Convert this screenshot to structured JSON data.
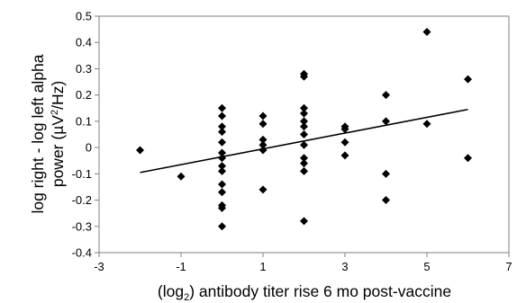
{
  "chart_data": {
    "type": "scatter",
    "title": "",
    "xlabel": "(log2) antibody titer rise 6 mo post-vaccine",
    "xlabel_parts": {
      "pre": "(log",
      "sub": "2",
      "post": ") antibody titer rise 6 mo post-vaccine"
    },
    "ylabel_line1": "log right - log left alpha",
    "ylabel_line2": {
      "pre": "power (µV",
      "sup": "2",
      "post": "/Hz)"
    },
    "xlim": [
      -3,
      7
    ],
    "ylim": [
      -0.4,
      0.5
    ],
    "x_ticks": [
      -3,
      -1,
      1,
      3,
      5,
      7
    ],
    "x_tick_labels": [
      "-3",
      "-1",
      "1",
      "3",
      "5",
      "7"
    ],
    "y_ticks": [
      -0.4,
      -0.3,
      -0.2,
      -0.1,
      0,
      0.1,
      0.2,
      0.3,
      0.4,
      0.5
    ],
    "y_tick_labels": [
      "-0.4",
      "-0.3",
      "-0.2",
      "-0.1",
      "0",
      "0.1",
      "0.2",
      "0.3",
      "0.4",
      "0.5"
    ],
    "grid": false,
    "legend": "none",
    "marker_color": "#000000",
    "points": [
      {
        "x": -2,
        "y": -0.01
      },
      {
        "x": -1,
        "y": -0.11
      },
      {
        "x": 0,
        "y": 0.15
      },
      {
        "x": 0,
        "y": 0.12
      },
      {
        "x": 0,
        "y": 0.08
      },
      {
        "x": 0,
        "y": 0.06
      },
      {
        "x": 0,
        "y": 0.02
      },
      {
        "x": 0,
        "y": -0.02
      },
      {
        "x": 0,
        "y": -0.04
      },
      {
        "x": 0,
        "y": -0.07
      },
      {
        "x": 0,
        "y": -0.09
      },
      {
        "x": 0,
        "y": -0.14
      },
      {
        "x": 0,
        "y": -0.17
      },
      {
        "x": 0,
        "y": -0.22
      },
      {
        "x": 0,
        "y": -0.23
      },
      {
        "x": 0,
        "y": -0.3
      },
      {
        "x": 1,
        "y": 0.12
      },
      {
        "x": 1,
        "y": 0.09
      },
      {
        "x": 1,
        "y": 0.03
      },
      {
        "x": 1,
        "y": 0.01
      },
      {
        "x": 1,
        "y": -0.01
      },
      {
        "x": 1,
        "y": -0.16
      },
      {
        "x": 2,
        "y": 0.28
      },
      {
        "x": 2,
        "y": 0.27
      },
      {
        "x": 2,
        "y": 0.15
      },
      {
        "x": 2,
        "y": 0.13
      },
      {
        "x": 2,
        "y": 0.1
      },
      {
        "x": 2,
        "y": 0.08
      },
      {
        "x": 2,
        "y": 0.05
      },
      {
        "x": 2,
        "y": 0.01
      },
      {
        "x": 2,
        "y": -0.04
      },
      {
        "x": 2,
        "y": -0.06
      },
      {
        "x": 2,
        "y": -0.09
      },
      {
        "x": 2,
        "y": -0.28
      },
      {
        "x": 3,
        "y": 0.08
      },
      {
        "x": 3,
        "y": 0.07
      },
      {
        "x": 3,
        "y": 0.02
      },
      {
        "x": 3,
        "y": -0.03
      },
      {
        "x": 4,
        "y": 0.2
      },
      {
        "x": 4,
        "y": 0.1
      },
      {
        "x": 4,
        "y": -0.1
      },
      {
        "x": 4,
        "y": -0.2
      },
      {
        "x": 5,
        "y": 0.44
      },
      {
        "x": 5,
        "y": 0.09
      },
      {
        "x": 6,
        "y": 0.26
      },
      {
        "x": 6,
        "y": -0.04
      }
    ],
    "trendline": {
      "x": [
        -2,
        6
      ],
      "y": [
        -0.095,
        0.145
      ],
      "color": "#000000"
    }
  }
}
